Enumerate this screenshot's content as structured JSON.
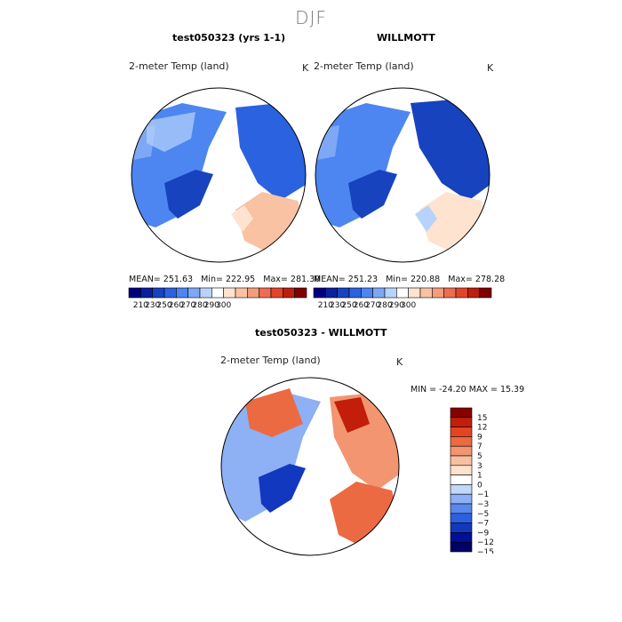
{
  "figure": {
    "season": "DJF",
    "variable_label": "2-meter Temp (land)",
    "units": "K"
  },
  "panels": {
    "model": {
      "title": "test050323 (yrs 1-1)",
      "stats": {
        "mean": "251.63",
        "min": "222.95",
        "max": "281.30"
      }
    },
    "obs": {
      "title": "WILLMOTT",
      "stats": {
        "mean": "251.23",
        "min": "220.88",
        "max": "278.28"
      }
    },
    "diff": {
      "title": "test050323 - WILLMOTT",
      "min_max_text": "MIN = -24.20 MAX =  15.39"
    }
  },
  "stat_labels": {
    "mean": "MEAN=",
    "min": "Min=",
    "max": "Max="
  },
  "colors": {
    "abs_scale": [
      "#00007f",
      "#0b209e",
      "#1743bf",
      "#2a62e0",
      "#4d86f0",
      "#7ea8f5",
      "#b8d3fb",
      "#ffffff",
      "#fde3d0",
      "#f8c2a3",
      "#f39d7d",
      "#ec6d4f",
      "#e0452c",
      "#bb200f",
      "#7f0000"
    ],
    "diff_scale": [
      "#000066",
      "#00109a",
      "#1238c0",
      "#2c60e0",
      "#5a88ec",
      "#8eb0f4",
      "#c2d7fa",
      "#ffffff",
      "#fde2cf",
      "#f8c0a0",
      "#f29570",
      "#ec6a42",
      "#e44422",
      "#c21e0b",
      "#870000"
    ],
    "land_base": "#f2f2f2"
  },
  "chart_data": [
    {
      "type": "heatmap",
      "title": "test050323 (yrs 1-1)",
      "subtitle": "2-meter Temp (land)",
      "units": "K",
      "projection": "north polar stereographic",
      "summary": {
        "mean": 251.63,
        "min": 222.95,
        "max": 281.3
      },
      "colorbar_ticks": [
        210,
        230,
        250,
        260,
        270,
        280,
        290,
        300
      ],
      "colorbar_labels": [
        "210",
        "230",
        "250",
        "260",
        "270",
        "280",
        "290",
        "300"
      ]
    },
    {
      "type": "heatmap",
      "title": "WILLMOTT",
      "subtitle": "2-meter Temp (land)",
      "units": "K",
      "projection": "north polar stereographic",
      "summary": {
        "mean": 251.23,
        "min": 220.88,
        "max": 278.28
      },
      "colorbar_ticks": [
        210,
        230,
        250,
        260,
        270,
        280,
        290,
        300
      ],
      "colorbar_labels": [
        "210",
        "230",
        "250",
        "260",
        "270",
        "280",
        "290",
        "300"
      ]
    },
    {
      "type": "heatmap",
      "title": "test050323 - WILLMOTT",
      "subtitle": "2-meter Temp (land)",
      "units": "K",
      "projection": "north polar stereographic",
      "summary": {
        "min": -24.2,
        "max": 15.39
      },
      "colorbar_ticks": [
        15,
        12,
        9,
        7,
        5,
        3,
        1,
        0,
        -1,
        -3,
        -5,
        -7,
        -9,
        -12,
        -15
      ],
      "colorbar_labels": [
        "15",
        "12",
        "9",
        "7",
        "5",
        "3",
        "1",
        "0",
        "−1",
        "−3",
        "−5",
        "−7",
        "−9",
        "−12",
        "−15"
      ]
    }
  ]
}
